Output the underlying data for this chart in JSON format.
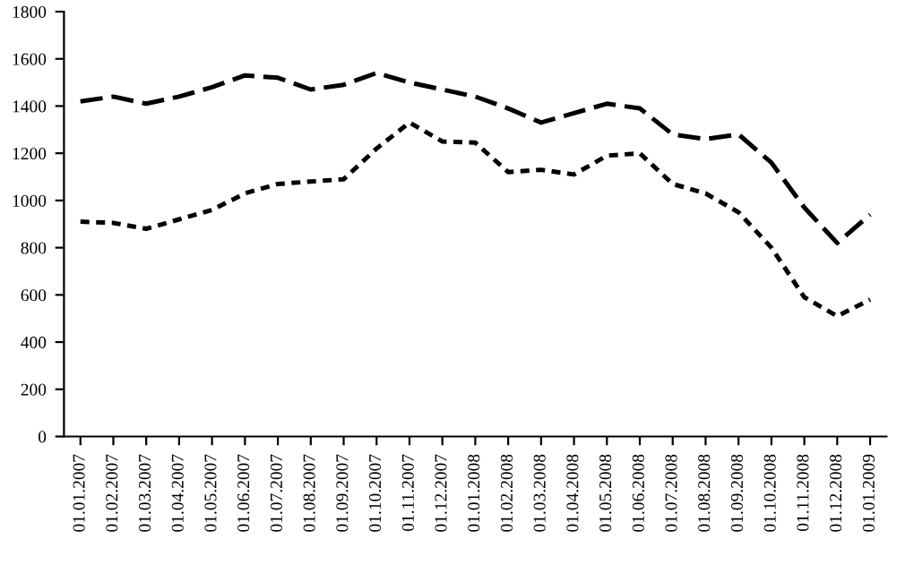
{
  "chart_data": {
    "type": "line",
    "categories": [
      "01.01.2007",
      "01.02.2007",
      "01.03.2007",
      "01.04.2007",
      "01.05.2007",
      "01.06.2007",
      "01.07.2007",
      "01.08.2007",
      "01.09.2007",
      "01.10.2007",
      "01.11.2007",
      "01.12.2007",
      "01.01.2008",
      "01.02.2008",
      "01.03.2008",
      "01.04.2008",
      "01.05.2008",
      "01.06.2008",
      "01.07.2008",
      "01.08.2008",
      "01.09.2008",
      "01.10.2008",
      "01.11.2008",
      "01.12.2008",
      "01.01.2009"
    ],
    "series": [
      {
        "color": "#000000",
        "line_style": "dashed",
        "values": [
          1420,
          1440,
          1410,
          1440,
          1480,
          1530,
          1520,
          1470,
          1490,
          1540,
          1500,
          1470,
          1440,
          1390,
          1330,
          1370,
          1410,
          1390,
          1280,
          1260,
          1280,
          1160,
          970,
          820,
          940
        ]
      },
      {
        "color": "#000000",
        "line_style": "dotted",
        "values": [
          910,
          905,
          880,
          920,
          960,
          1030,
          1070,
          1080,
          1090,
          1220,
          1330,
          1250,
          1245,
          1120,
          1130,
          1110,
          1190,
          1200,
          1070,
          1030,
          950,
          800,
          590,
          510,
          580
        ]
      }
    ],
    "ylim": [
      0,
      1800
    ],
    "yticks": [
      0,
      200,
      400,
      600,
      800,
      1000,
      1200,
      1400,
      1600,
      1800
    ],
    "grid": false,
    "marker": "none"
  }
}
